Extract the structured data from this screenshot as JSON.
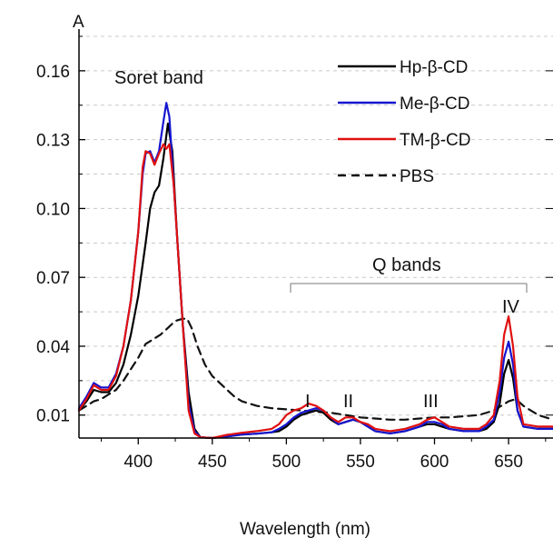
{
  "chart_data": {
    "type": "line",
    "title": "",
    "xlabel": "Wavelength (nm)",
    "ylabel": "A",
    "xlim": [
      360,
      680
    ],
    "ylim": [
      0.0,
      0.175
    ],
    "xticks": [
      400,
      450,
      500,
      550,
      600,
      650
    ],
    "yticks": [
      0.01,
      0.04,
      0.07,
      0.1,
      0.13,
      0.16
    ],
    "ytick_labels": [
      "0.01",
      "0.04",
      "0.07",
      "0.10",
      "0.13",
      "0.16"
    ],
    "grid": "horizontal dashed gridlines",
    "legend_position": "top-right",
    "annotations": {
      "soret": "Soret band",
      "q_bands": "Q bands",
      "band_I": "I",
      "band_II": "II",
      "band_III": "III",
      "band_IV": "IV"
    },
    "series": [
      {
        "name": "Hp-β-CD",
        "color": "#000000",
        "dash": "solid",
        "points": [
          [
            360,
            0.012
          ],
          [
            365,
            0.016
          ],
          [
            370,
            0.021
          ],
          [
            375,
            0.02
          ],
          [
            380,
            0.02
          ],
          [
            385,
            0.024
          ],
          [
            390,
            0.032
          ],
          [
            395,
            0.045
          ],
          [
            400,
            0.062
          ],
          [
            405,
            0.085
          ],
          [
            408,
            0.1
          ],
          [
            411,
            0.107
          ],
          [
            414,
            0.11
          ],
          [
            417,
            0.122
          ],
          [
            420,
            0.137
          ],
          [
            423,
            0.125
          ],
          [
            426,
            0.09
          ],
          [
            430,
            0.05
          ],
          [
            434,
            0.02
          ],
          [
            438,
            0.004
          ],
          [
            442,
            0.0003
          ],
          [
            450,
            0.0
          ],
          [
            460,
            0.0007
          ],
          [
            470,
            0.0015
          ],
          [
            480,
            0.0019
          ],
          [
            490,
            0.0025
          ],
          [
            495,
            0.003
          ],
          [
            500,
            0.005
          ],
          [
            505,
            0.008
          ],
          [
            510,
            0.01
          ],
          [
            515,
            0.011
          ],
          [
            520,
            0.012
          ],
          [
            525,
            0.011
          ],
          [
            530,
            0.008
          ],
          [
            535,
            0.006
          ],
          [
            540,
            0.007
          ],
          [
            545,
            0.008
          ],
          [
            550,
            0.007
          ],
          [
            555,
            0.005
          ],
          [
            560,
            0.003
          ],
          [
            570,
            0.002
          ],
          [
            580,
            0.003
          ],
          [
            590,
            0.005
          ],
          [
            595,
            0.006
          ],
          [
            600,
            0.006
          ],
          [
            605,
            0.005
          ],
          [
            610,
            0.004
          ],
          [
            620,
            0.003
          ],
          [
            630,
            0.003
          ],
          [
            635,
            0.004
          ],
          [
            640,
            0.007
          ],
          [
            644,
            0.015
          ],
          [
            647,
            0.028
          ],
          [
            650,
            0.034
          ],
          [
            653,
            0.026
          ],
          [
            656,
            0.012
          ],
          [
            660,
            0.005
          ],
          [
            670,
            0.004
          ],
          [
            680,
            0.004
          ]
        ]
      },
      {
        "name": "Me-β-CD",
        "color": "#1515d0",
        "dash": "solid",
        "points": [
          [
            360,
            0.013
          ],
          [
            365,
            0.018
          ],
          [
            370,
            0.024
          ],
          [
            375,
            0.022
          ],
          [
            380,
            0.022
          ],
          [
            385,
            0.028
          ],
          [
            390,
            0.04
          ],
          [
            395,
            0.06
          ],
          [
            400,
            0.09
          ],
          [
            403,
            0.115
          ],
          [
            405,
            0.124
          ],
          [
            408,
            0.125
          ],
          [
            411,
            0.12
          ],
          [
            414,
            0.125
          ],
          [
            417,
            0.138
          ],
          [
            419,
            0.146
          ],
          [
            421,
            0.14
          ],
          [
            424,
            0.11
          ],
          [
            427,
            0.08
          ],
          [
            430,
            0.05
          ],
          [
            434,
            0.015
          ],
          [
            438,
            0.003
          ],
          [
            442,
            0.0003
          ],
          [
            450,
            0.0
          ],
          [
            460,
            0.0007
          ],
          [
            470,
            0.0015
          ],
          [
            480,
            0.0019
          ],
          [
            490,
            0.0025
          ],
          [
            495,
            0.004
          ],
          [
            500,
            0.006
          ],
          [
            505,
            0.009
          ],
          [
            510,
            0.011
          ],
          [
            515,
            0.012
          ],
          [
            520,
            0.013
          ],
          [
            525,
            0.012
          ],
          [
            530,
            0.009
          ],
          [
            535,
            0.006
          ],
          [
            540,
            0.007
          ],
          [
            545,
            0.008
          ],
          [
            550,
            0.007
          ],
          [
            555,
            0.005
          ],
          [
            560,
            0.003
          ],
          [
            570,
            0.002
          ],
          [
            580,
            0.003
          ],
          [
            590,
            0.005
          ],
          [
            595,
            0.007
          ],
          [
            600,
            0.007
          ],
          [
            605,
            0.006
          ],
          [
            610,
            0.004
          ],
          [
            620,
            0.003
          ],
          [
            630,
            0.003
          ],
          [
            635,
            0.005
          ],
          [
            640,
            0.008
          ],
          [
            644,
            0.02
          ],
          [
            647,
            0.035
          ],
          [
            650,
            0.042
          ],
          [
            653,
            0.032
          ],
          [
            656,
            0.012
          ],
          [
            660,
            0.005
          ],
          [
            670,
            0.004
          ],
          [
            680,
            0.004
          ]
        ]
      },
      {
        "name": "TM-β-CD",
        "color": "#e01010",
        "dash": "solid",
        "points": [
          [
            360,
            0.012
          ],
          [
            365,
            0.017
          ],
          [
            370,
            0.023
          ],
          [
            375,
            0.021
          ],
          [
            380,
            0.021
          ],
          [
            385,
            0.027
          ],
          [
            390,
            0.04
          ],
          [
            395,
            0.06
          ],
          [
            400,
            0.09
          ],
          [
            403,
            0.118
          ],
          [
            405,
            0.125
          ],
          [
            408,
            0.124
          ],
          [
            411,
            0.119
          ],
          [
            414,
            0.124
          ],
          [
            417,
            0.128
          ],
          [
            419,
            0.126
          ],
          [
            421,
            0.128
          ],
          [
            424,
            0.11
          ],
          [
            427,
            0.08
          ],
          [
            430,
            0.05
          ],
          [
            434,
            0.012
          ],
          [
            438,
            0.002
          ],
          [
            442,
            0.0003
          ],
          [
            450,
            0.0
          ],
          [
            460,
            0.0014
          ],
          [
            470,
            0.0023
          ],
          [
            480,
            0.003
          ],
          [
            490,
            0.004
          ],
          [
            495,
            0.006
          ],
          [
            500,
            0.01
          ],
          [
            505,
            0.012
          ],
          [
            510,
            0.013
          ],
          [
            515,
            0.015
          ],
          [
            520,
            0.014
          ],
          [
            525,
            0.012
          ],
          [
            530,
            0.009
          ],
          [
            535,
            0.007
          ],
          [
            540,
            0.009
          ],
          [
            545,
            0.009
          ],
          [
            550,
            0.007
          ],
          [
            555,
            0.006
          ],
          [
            560,
            0.004
          ],
          [
            570,
            0.003
          ],
          [
            580,
            0.004
          ],
          [
            590,
            0.006
          ],
          [
            595,
            0.008
          ],
          [
            600,
            0.009
          ],
          [
            605,
            0.007
          ],
          [
            610,
            0.005
          ],
          [
            620,
            0.004
          ],
          [
            630,
            0.004
          ],
          [
            635,
            0.006
          ],
          [
            640,
            0.01
          ],
          [
            644,
            0.025
          ],
          [
            647,
            0.045
          ],
          [
            650,
            0.053
          ],
          [
            653,
            0.04
          ],
          [
            656,
            0.018
          ],
          [
            660,
            0.006
          ],
          [
            670,
            0.005
          ],
          [
            680,
            0.005
          ]
        ]
      },
      {
        "name": "PBS",
        "color": "#111111",
        "dash": "dashed",
        "points": [
          [
            360,
            0.012
          ],
          [
            365,
            0.014
          ],
          [
            370,
            0.016
          ],
          [
            375,
            0.017
          ],
          [
            380,
            0.019
          ],
          [
            385,
            0.021
          ],
          [
            390,
            0.025
          ],
          [
            395,
            0.03
          ],
          [
            400,
            0.035
          ],
          [
            405,
            0.041
          ],
          [
            410,
            0.043
          ],
          [
            415,
            0.045
          ],
          [
            420,
            0.048
          ],
          [
            425,
            0.051
          ],
          [
            430,
            0.052
          ],
          [
            433,
            0.052
          ],
          [
            436,
            0.048
          ],
          [
            440,
            0.04
          ],
          [
            445,
            0.032
          ],
          [
            450,
            0.027
          ],
          [
            455,
            0.024
          ],
          [
            460,
            0.021
          ],
          [
            465,
            0.018
          ],
          [
            470,
            0.016
          ],
          [
            475,
            0.015
          ],
          [
            480,
            0.014
          ],
          [
            490,
            0.013
          ],
          [
            500,
            0.0125
          ],
          [
            510,
            0.012
          ],
          [
            520,
            0.0115
          ],
          [
            530,
            0.011
          ],
          [
            540,
            0.01
          ],
          [
            550,
            0.009
          ],
          [
            560,
            0.0085
          ],
          [
            570,
            0.008
          ],
          [
            580,
            0.008
          ],
          [
            590,
            0.0085
          ],
          [
            600,
            0.009
          ],
          [
            610,
            0.009
          ],
          [
            620,
            0.0095
          ],
          [
            630,
            0.01
          ],
          [
            640,
            0.012
          ],
          [
            645,
            0.014
          ],
          [
            650,
            0.016
          ],
          [
            655,
            0.017
          ],
          [
            660,
            0.014
          ],
          [
            670,
            0.01
          ],
          [
            680,
            0.008
          ]
        ]
      }
    ]
  }
}
